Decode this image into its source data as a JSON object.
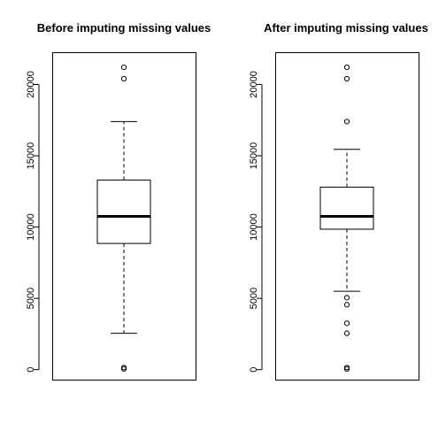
{
  "chart_data": [
    {
      "type": "boxplot",
      "title": "Before imputing missing values",
      "ylim": [
        -700,
        22200
      ],
      "yticks": [
        0,
        5000,
        10000,
        15000,
        20000
      ],
      "ytick_labels": [
        "0",
        "5000",
        "10000",
        "15000",
        "20000"
      ],
      "box": {
        "whisker_low": 2550,
        "q1": 8850,
        "median": 10750,
        "q3": 13300,
        "whisker_high": 17400
      },
      "outliers": [
        50,
        150,
        20400,
        21200
      ]
    },
    {
      "type": "boxplot",
      "title": "After imputing missing values",
      "ylim": [
        -700,
        22200
      ],
      "yticks": [
        0,
        5000,
        10000,
        15000,
        20000
      ],
      "ytick_labels": [
        "0",
        "5000",
        "10000",
        "15000",
        "20000"
      ],
      "box": {
        "whisker_low": 5500,
        "q1": 9850,
        "median": 10750,
        "q3": 12800,
        "whisker_high": 15450
      },
      "outliers": [
        50,
        150,
        2550,
        3250,
        4550,
        5050,
        17400,
        20400,
        21200
      ]
    }
  ]
}
